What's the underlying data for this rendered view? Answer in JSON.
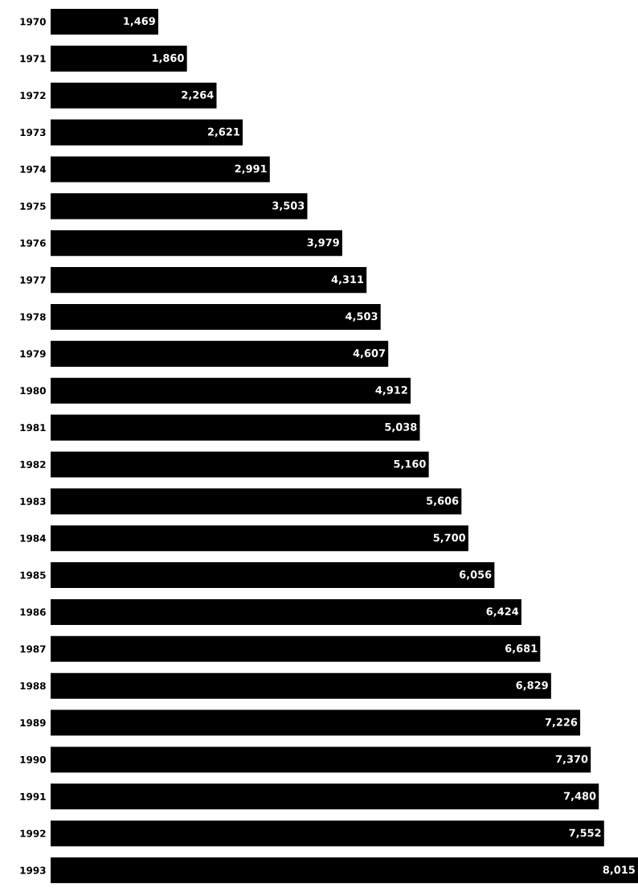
{
  "chart_data": {
    "type": "bar",
    "orientation": "horizontal",
    "color": "#000000",
    "categories": [
      "1970",
      "1971",
      "1972",
      "1973",
      "1974",
      "1975",
      "1976",
      "1977",
      "1978",
      "1979",
      "1980",
      "1981",
      "1982",
      "1983",
      "1984",
      "1985",
      "1986",
      "1987",
      "1988",
      "1989",
      "1990",
      "1991",
      "1992",
      "1993"
    ],
    "values": [
      1469,
      1860,
      2264,
      2621,
      2991,
      3503,
      3979,
      4311,
      4503,
      4607,
      4912,
      5038,
      5160,
      5606,
      5700,
      6056,
      6424,
      6681,
      6829,
      7226,
      7370,
      7480,
      7552,
      8015
    ],
    "value_labels": [
      "1,469",
      "1,860",
      "2,264",
      "2,621",
      "2,991",
      "3,503",
      "3,979",
      "4,311",
      "4,503",
      "4,607",
      "4,912",
      "5,038",
      "5,160",
      "5,606",
      "5,700",
      "6,056",
      "6,424",
      "6,681",
      "6,829",
      "7,226",
      "7,370",
      "7,480",
      "7,552",
      "8,015"
    ]
  }
}
